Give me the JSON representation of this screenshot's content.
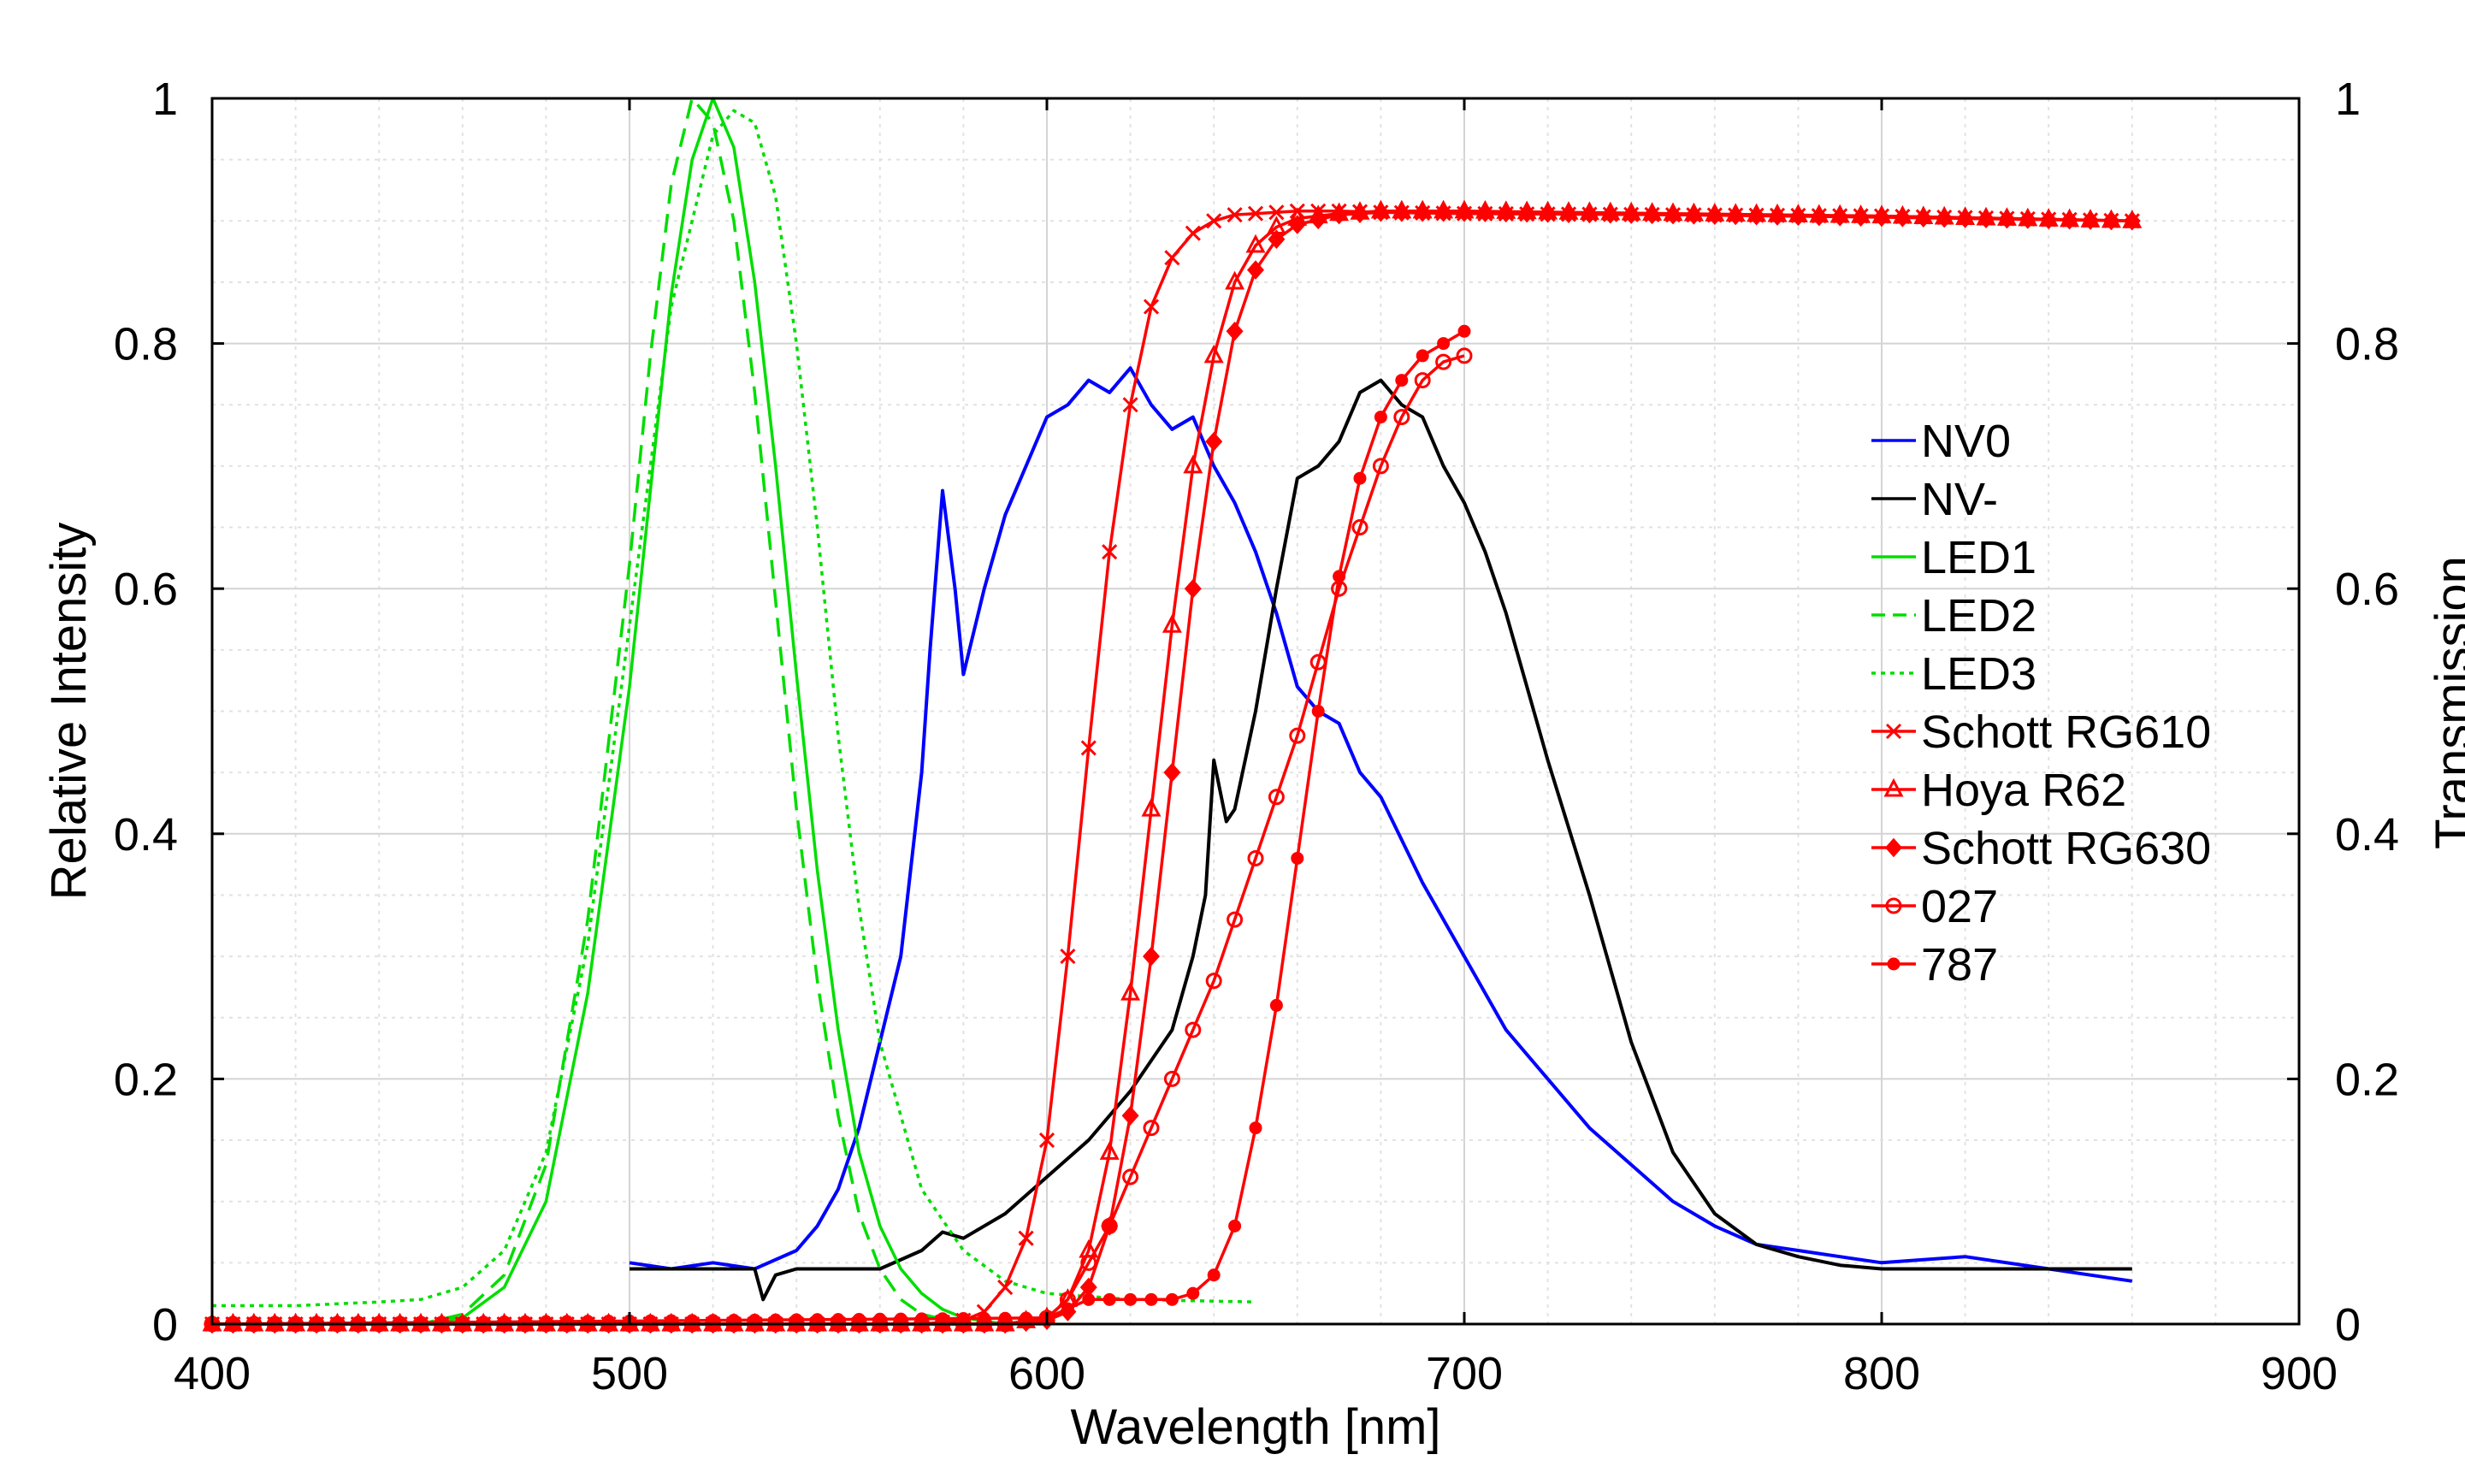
{
  "chart_data": {
    "type": "line",
    "title": "",
    "xlabel": "Wavelength [nm]",
    "ylabel": "Relative Intensity",
    "y2label": "Transmission",
    "xlim": [
      400,
      900
    ],
    "ylim": [
      0,
      1
    ],
    "y2lim": [
      0,
      1
    ],
    "grid": true,
    "legend_position": "right-middle",
    "xticks": [
      "400",
      "500",
      "600",
      "700",
      "800",
      "900"
    ],
    "yticks": [
      "0",
      "0.2",
      "0.4",
      "0.6",
      "0.8",
      "1"
    ],
    "y2ticks": [
      "0",
      "0.2",
      "0.4",
      "0.6",
      "0.8",
      "1"
    ],
    "series": [
      {
        "name": "NV0",
        "color": "#0000ff",
        "axis": "left",
        "style": "solid",
        "marker": "none",
        "x": [
          500,
          510,
          520,
          530,
          540,
          545,
          550,
          555,
          560,
          565,
          570,
          572,
          575,
          578,
          580,
          585,
          590,
          595,
          600,
          605,
          610,
          615,
          620,
          625,
          630,
          635,
          640,
          645,
          650,
          655,
          660,
          665,
          670,
          675,
          680,
          690,
          700,
          710,
          720,
          730,
          740,
          750,
          760,
          770,
          780,
          790,
          800,
          820,
          840,
          850,
          860
        ],
        "y": [
          0.05,
          0.045,
          0.05,
          0.045,
          0.06,
          0.08,
          0.11,
          0.16,
          0.23,
          0.3,
          0.45,
          0.55,
          0.68,
          0.6,
          0.53,
          0.6,
          0.66,
          0.7,
          0.74,
          0.75,
          0.77,
          0.76,
          0.78,
          0.75,
          0.73,
          0.74,
          0.7,
          0.67,
          0.63,
          0.58,
          0.52,
          0.5,
          0.49,
          0.45,
          0.43,
          0.36,
          0.3,
          0.24,
          0.2,
          0.16,
          0.13,
          0.1,
          0.08,
          0.065,
          0.06,
          0.055,
          0.05,
          0.055,
          0.045,
          0.04,
          0.035
        ]
      },
      {
        "name": "NV-",
        "color": "#000000",
        "axis": "left",
        "style": "solid",
        "marker": "none",
        "x": [
          500,
          520,
          530,
          532,
          535,
          540,
          560,
          570,
          575,
          580,
          590,
          600,
          610,
          620,
          630,
          635,
          638,
          640,
          643,
          645,
          650,
          655,
          660,
          665,
          670,
          675,
          680,
          685,
          690,
          695,
          700,
          705,
          710,
          720,
          730,
          740,
          750,
          760,
          770,
          780,
          790,
          800,
          820,
          840,
          860
        ],
        "y": [
          0.045,
          0.045,
          0.045,
          0.02,
          0.04,
          0.045,
          0.045,
          0.06,
          0.075,
          0.07,
          0.09,
          0.12,
          0.15,
          0.19,
          0.24,
          0.3,
          0.35,
          0.46,
          0.41,
          0.42,
          0.5,
          0.6,
          0.69,
          0.7,
          0.72,
          0.76,
          0.77,
          0.75,
          0.74,
          0.7,
          0.67,
          0.63,
          0.58,
          0.46,
          0.35,
          0.23,
          0.14,
          0.09,
          0.065,
          0.055,
          0.048,
          0.045,
          0.045,
          0.045,
          0.045
        ]
      },
      {
        "name": "LED1",
        "color": "#00dd00",
        "axis": "left",
        "style": "solid",
        "marker": "none",
        "x": [
          400,
          450,
          460,
          470,
          480,
          490,
          500,
          505,
          510,
          515,
          520,
          525,
          530,
          535,
          540,
          545,
          550,
          555,
          560,
          565,
          570,
          575,
          580,
          590,
          600
        ],
        "y": [
          0,
          0,
          0.005,
          0.03,
          0.1,
          0.27,
          0.52,
          0.68,
          0.84,
          0.95,
          1.0,
          0.96,
          0.85,
          0.7,
          0.53,
          0.37,
          0.24,
          0.14,
          0.08,
          0.045,
          0.025,
          0.012,
          0.005,
          0,
          0
        ]
      },
      {
        "name": "LED2",
        "color": "#00dd00",
        "axis": "left",
        "style": "dashed",
        "marker": "none",
        "x": [
          400,
          450,
          460,
          470,
          480,
          490,
          500,
          505,
          510,
          515,
          520,
          525,
          530,
          535,
          540,
          545,
          550,
          555,
          560,
          565,
          570,
          580
        ],
        "y": [
          0,
          0,
          0.008,
          0.04,
          0.13,
          0.33,
          0.62,
          0.79,
          0.93,
          1.0,
          0.98,
          0.9,
          0.76,
          0.59,
          0.42,
          0.28,
          0.17,
          0.09,
          0.045,
          0.02,
          0.008,
          0
        ]
      },
      {
        "name": "LED3",
        "color": "#00dd00",
        "axis": "left",
        "style": "dotted",
        "marker": "none",
        "x": [
          400,
          420,
          440,
          450,
          460,
          470,
          480,
          490,
          500,
          510,
          520,
          525,
          530,
          535,
          540,
          545,
          550,
          555,
          560,
          570,
          580,
          590,
          600,
          620,
          650
        ],
        "y": [
          0.015,
          0.015,
          0.018,
          0.02,
          0.03,
          0.06,
          0.14,
          0.31,
          0.57,
          0.83,
          0.97,
          0.99,
          0.98,
          0.92,
          0.8,
          0.65,
          0.48,
          0.34,
          0.23,
          0.11,
          0.06,
          0.035,
          0.025,
          0.02,
          0.018
        ]
      },
      {
        "name": "Schott RG610",
        "color": "#ff0000",
        "axis": "right",
        "style": "solid",
        "marker": "x",
        "x": [
          400,
          560,
          570,
          580,
          585,
          590,
          595,
          600,
          605,
          610,
          615,
          620,
          625,
          630,
          635,
          640,
          645,
          650,
          660,
          670,
          680,
          700,
          750,
          800,
          860
        ],
        "y": [
          0,
          0,
          0,
          0.003,
          0.01,
          0.03,
          0.07,
          0.15,
          0.3,
          0.47,
          0.63,
          0.75,
          0.83,
          0.87,
          0.89,
          0.9,
          0.905,
          0.906,
          0.908,
          0.908,
          0.907,
          0.906,
          0.905,
          0.904,
          0.9
        ]
      },
      {
        "name": "Hoya R62",
        "color": "#ff0000",
        "axis": "right",
        "style": "solid",
        "marker": "triangle",
        "x": [
          400,
          580,
          590,
          600,
          605,
          610,
          615,
          620,
          625,
          630,
          635,
          640,
          645,
          650,
          655,
          660,
          670,
          680,
          700,
          750,
          800,
          860
        ],
        "y": [
          0,
          0,
          0,
          0.005,
          0.02,
          0.06,
          0.14,
          0.27,
          0.42,
          0.57,
          0.7,
          0.79,
          0.85,
          0.88,
          0.895,
          0.902,
          0.906,
          0.908,
          0.908,
          0.906,
          0.904,
          0.9
        ]
      },
      {
        "name": "Schott RG630",
        "color": "#ff0000",
        "axis": "right",
        "style": "solid",
        "marker": "diamond",
        "x": [
          400,
          590,
          600,
          605,
          610,
          615,
          620,
          625,
          630,
          635,
          640,
          645,
          650,
          655,
          660,
          670,
          680,
          700,
          750,
          800,
          860
        ],
        "y": [
          0,
          0,
          0.003,
          0.01,
          0.03,
          0.08,
          0.17,
          0.3,
          0.45,
          0.6,
          0.72,
          0.81,
          0.86,
          0.885,
          0.897,
          0.905,
          0.907,
          0.907,
          0.905,
          0.903,
          0.9
        ]
      },
      {
        "name": "027",
        "color": "#ff0000",
        "axis": "right",
        "style": "solid",
        "marker": "circle",
        "x": [
          400,
          590,
          600,
          605,
          610,
          615,
          620,
          625,
          630,
          635,
          640,
          645,
          650,
          655,
          660,
          665,
          670,
          675,
          680,
          685,
          690,
          695,
          700
        ],
        "y": [
          0,
          0,
          0.005,
          0.02,
          0.05,
          0.08,
          0.12,
          0.16,
          0.2,
          0.24,
          0.28,
          0.33,
          0.38,
          0.43,
          0.48,
          0.54,
          0.6,
          0.65,
          0.7,
          0.74,
          0.77,
          0.785,
          0.79
        ]
      },
      {
        "name": "787",
        "color": "#ff0000",
        "axis": "right",
        "style": "solid",
        "marker": "dot",
        "x": [
          400,
          600,
          610,
          620,
          630,
          635,
          640,
          645,
          650,
          655,
          660,
          665,
          670,
          675,
          680,
          685,
          690,
          695,
          700
        ],
        "y": [
          0,
          0.005,
          0.02,
          0.02,
          0.02,
          0.025,
          0.04,
          0.08,
          0.16,
          0.26,
          0.38,
          0.5,
          0.61,
          0.69,
          0.74,
          0.77,
          0.79,
          0.8,
          0.81
        ]
      }
    ]
  }
}
